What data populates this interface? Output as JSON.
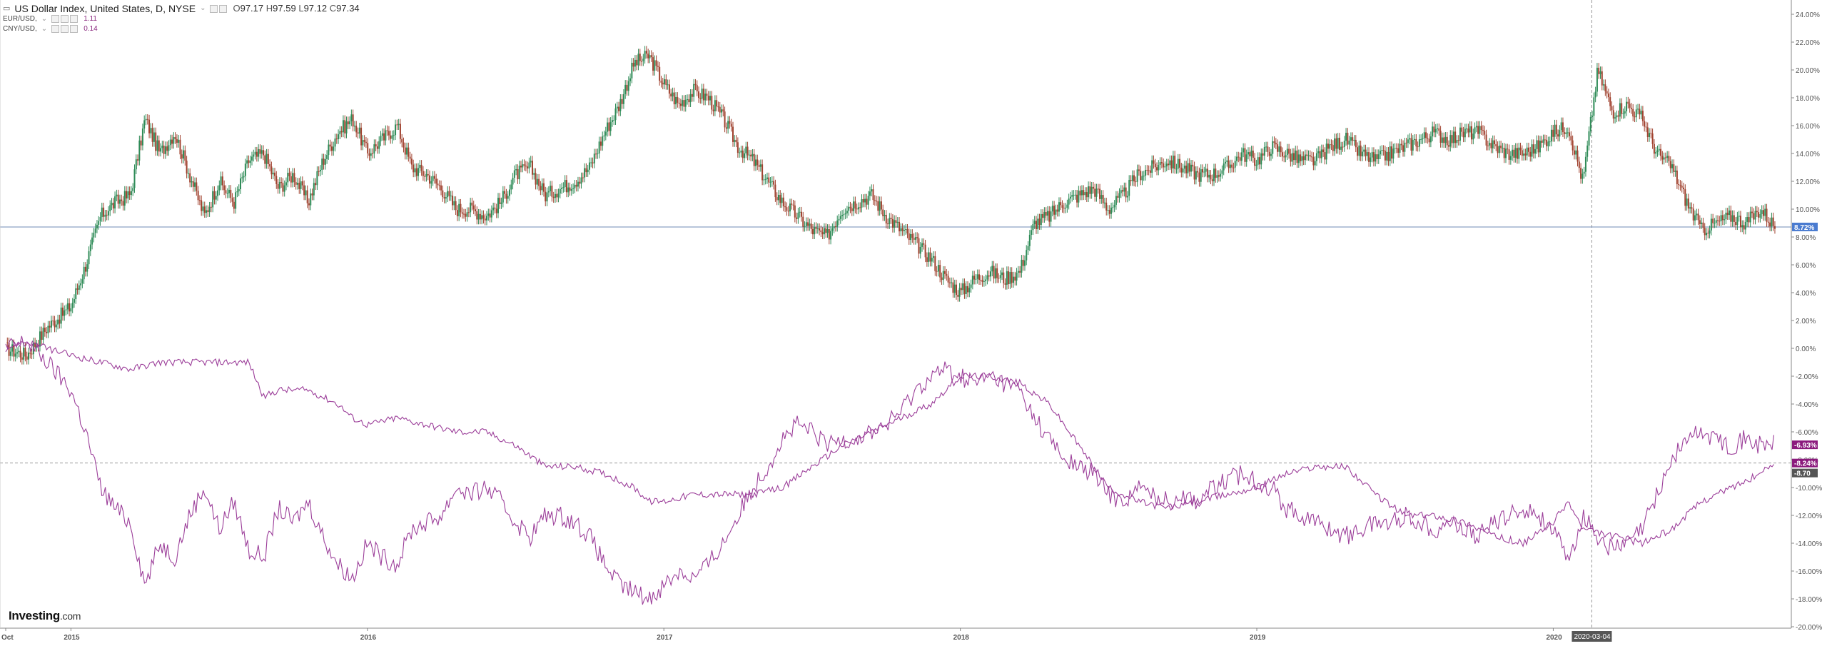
{
  "header": {
    "title": "US Dollar Index, United States, D, NYSE",
    "ohlc": {
      "o_label": "O",
      "o": "97.17",
      "h_label": "H",
      "h": "97.59",
      "l_label": "L",
      "l": "97.12",
      "c_label": "C",
      "c": "97.34"
    },
    "overlays": [
      {
        "label": "EUR/USD,",
        "value": "1.11"
      },
      {
        "label": "CNY/USD,",
        "value": "0.14"
      }
    ]
  },
  "logo": {
    "brand": "Investing",
    "suffix": ".com"
  },
  "colors": {
    "up": "#2e8b57",
    "down": "#a0412e",
    "overlay": "#9c3f9a",
    "axis_text": "#555555",
    "price_tag_blue": "#4a7bd0",
    "price_tag_purple": "#8b1a7d"
  },
  "chart_data": {
    "type": "line",
    "x_labels": [
      "Oct",
      "2015",
      "2016",
      "2017",
      "2018",
      "2019",
      "2020"
    ],
    "crosshair_label": "2020-03-04",
    "y_axis": {
      "ticks": [
        "24.00%",
        "22.00%",
        "20.00%",
        "18.00%",
        "16.00%",
        "14.00%",
        "12.00%",
        "10.00%",
        "8.00%",
        "6.00%",
        "4.00%",
        "2.00%",
        "0.00%",
        "-2.00%",
        "-4.00%",
        "-6.00%",
        "-8.00%",
        "-10.00%",
        "-12.00%",
        "-14.00%",
        "-16.00%",
        "-18.00%",
        "-20.00%"
      ],
      "ylim": [
        -20,
        24
      ]
    },
    "price_tags": [
      {
        "label": "8.72%",
        "value": 8.72
      },
      {
        "label": "-6.93%",
        "value": -6.93
      },
      {
        "label": "-8.24%",
        "value": -8.24
      },
      {
        "label": "-8.70",
        "value": -8.7
      }
    ],
    "series": [
      {
        "name": "US Dollar Index",
        "style": "candles",
        "x": [
          2014.78,
          2014.85,
          2014.92,
          2015.0,
          2015.05,
          2015.1,
          2015.15,
          2015.2,
          2015.25,
          2015.3,
          2015.35,
          2015.4,
          2015.45,
          2015.5,
          2015.55,
          2015.6,
          2015.65,
          2015.7,
          2015.75,
          2015.8,
          2015.85,
          2015.9,
          2015.95,
          2016.0,
          2016.05,
          2016.1,
          2016.15,
          2016.2,
          2016.25,
          2016.3,
          2016.35,
          2016.4,
          2016.45,
          2016.5,
          2016.55,
          2016.6,
          2016.65,
          2016.7,
          2016.75,
          2016.8,
          2016.85,
          2016.9,
          2016.95,
          2017.0,
          2017.05,
          2017.1,
          2017.15,
          2017.2,
          2017.25,
          2017.3,
          2017.35,
          2017.4,
          2017.45,
          2017.5,
          2017.55,
          2017.6,
          2017.65,
          2017.7,
          2017.75,
          2017.8,
          2017.85,
          2017.9,
          2017.95,
          2018.0,
          2018.05,
          2018.1,
          2018.15,
          2018.2,
          2018.25,
          2018.3,
          2018.35,
          2018.4,
          2018.45,
          2018.5,
          2018.55,
          2018.6,
          2018.65,
          2018.7,
          2018.75,
          2018.8,
          2018.85,
          2018.9,
          2018.95,
          2019.0,
          2019.05,
          2019.1,
          2019.15,
          2019.2,
          2019.25,
          2019.3,
          2019.35,
          2019.4,
          2019.45,
          2019.5,
          2019.55,
          2019.6,
          2019.65,
          2019.7,
          2019.75,
          2019.8,
          2019.85,
          2019.9,
          2019.95,
          2020.0,
          2020.05,
          2020.1,
          2020.15,
          2020.2,
          2020.25,
          2020.3,
          2020.35,
          2020.4,
          2020.45,
          2020.5,
          2020.55,
          2020.6,
          2020.65,
          2020.7,
          2020.75
        ],
        "values": [
          0.0,
          -0.5,
          1.5,
          3.0,
          6.0,
          9.5,
          10.5,
          11.0,
          16.5,
          14.0,
          15.5,
          12.5,
          9.5,
          12.0,
          10.5,
          13.5,
          14.0,
          11.5,
          12.5,
          10.5,
          13.5,
          15.5,
          16.5,
          14.0,
          15.0,
          16.0,
          13.0,
          12.5,
          11.5,
          10.0,
          10.0,
          9.5,
          10.5,
          12.5,
          13.0,
          11.0,
          11.5,
          12.0,
          13.0,
          15.5,
          17.5,
          20.5,
          21.0,
          19.0,
          17.5,
          18.5,
          18.0,
          16.5,
          14.5,
          13.5,
          12.0,
          10.5,
          9.5,
          8.5,
          8.0,
          10.0,
          10.5,
          11.0,
          9.5,
          8.5,
          7.5,
          6.5,
          5.0,
          4.0,
          5.0,
          5.5,
          5.0,
          5.5,
          9.0,
          9.5,
          10.5,
          11.0,
          11.5,
          10.0,
          11.0,
          12.5,
          13.0,
          13.5,
          13.0,
          12.5,
          12.5,
          13.0,
          14.0,
          13.5,
          14.5,
          14.0,
          13.5,
          13.5,
          14.5,
          15.0,
          14.0,
          13.5,
          14.0,
          14.5,
          15.0,
          15.5,
          15.0,
          15.5,
          15.5,
          14.5,
          14.0,
          14.0,
          14.5,
          15.5,
          16.0,
          12.0,
          20.0,
          17.0,
          17.5,
          16.5,
          14.0,
          13.0,
          10.5,
          8.5,
          9.0,
          9.5,
          9.0,
          10.0,
          8.7
        ]
      },
      {
        "name": "EUR/USD",
        "style": "line",
        "x": [
          2014.78,
          2014.85,
          2014.92,
          2015.0,
          2015.05,
          2015.1,
          2015.15,
          2015.2,
          2015.25,
          2015.3,
          2015.35,
          2015.4,
          2015.45,
          2015.5,
          2015.55,
          2015.6,
          2015.65,
          2015.7,
          2015.75,
          2015.8,
          2015.85,
          2015.9,
          2015.95,
          2016.0,
          2016.05,
          2016.1,
          2016.15,
          2016.2,
          2016.25,
          2016.3,
          2016.35,
          2016.4,
          2016.45,
          2016.5,
          2016.55,
          2016.6,
          2016.65,
          2016.7,
          2016.75,
          2016.8,
          2016.85,
          2016.9,
          2016.95,
          2017.0,
          2017.05,
          2017.1,
          2017.15,
          2017.2,
          2017.25,
          2017.3,
          2017.35,
          2017.4,
          2017.45,
          2017.5,
          2017.55,
          2017.6,
          2017.65,
          2017.7,
          2017.75,
          2017.8,
          2017.85,
          2017.9,
          2017.95,
          2018.0,
          2018.05,
          2018.1,
          2018.15,
          2018.2,
          2018.25,
          2018.3,
          2018.35,
          2018.4,
          2018.45,
          2018.5,
          2018.55,
          2018.6,
          2018.65,
          2018.7,
          2018.75,
          2018.8,
          2018.85,
          2018.9,
          2018.95,
          2019.0,
          2019.05,
          2019.1,
          2019.15,
          2019.2,
          2019.25,
          2019.3,
          2019.35,
          2019.4,
          2019.45,
          2019.5,
          2019.55,
          2019.6,
          2019.65,
          2019.7,
          2019.75,
          2019.8,
          2019.85,
          2019.9,
          2019.95,
          2020.0,
          2020.05,
          2020.1,
          2020.15,
          2020.2,
          2020.25,
          2020.3,
          2020.35,
          2020.4,
          2020.45,
          2020.5,
          2020.55,
          2020.6,
          2020.65,
          2020.7,
          2020.75
        ],
        "values": [
          0.0,
          0.5,
          -1.0,
          -3.0,
          -6.0,
          -10.0,
          -11.5,
          -12.5,
          -17.0,
          -14.0,
          -15.0,
          -12.0,
          -10.0,
          -13.0,
          -11.0,
          -14.5,
          -15.0,
          -11.5,
          -12.5,
          -11.0,
          -13.5,
          -15.5,
          -16.5,
          -14.0,
          -15.0,
          -15.5,
          -13.0,
          -12.5,
          -12.0,
          -10.0,
          -10.5,
          -10.0,
          -11.0,
          -12.5,
          -13.5,
          -12.0,
          -12.0,
          -12.5,
          -13.5,
          -15.5,
          -17.0,
          -17.5,
          -18.0,
          -17.0,
          -16.0,
          -16.5,
          -15.5,
          -14.0,
          -12.0,
          -10.0,
          -8.5,
          -6.5,
          -5.5,
          -6.0,
          -7.0,
          -6.5,
          -6.5,
          -6.0,
          -5.5,
          -4.5,
          -3.0,
          -2.0,
          -1.5,
          -2.0,
          -2.5,
          -2.0,
          -2.5,
          -3.0,
          -5.0,
          -6.5,
          -8.0,
          -8.5,
          -9.0,
          -10.5,
          -11.0,
          -10.0,
          -10.5,
          -11.0,
          -10.5,
          -11.0,
          -10.0,
          -9.5,
          -9.0,
          -9.5,
          -10.0,
          -11.5,
          -12.0,
          -12.5,
          -13.0,
          -13.5,
          -13.0,
          -12.5,
          -12.5,
          -12.0,
          -12.5,
          -13.0,
          -12.5,
          -13.0,
          -13.5,
          -12.5,
          -12.0,
          -11.5,
          -12.0,
          -13.0,
          -15.5,
          -12.0,
          -13.5,
          -14.5,
          -14.0,
          -13.0,
          -10.5,
          -8.0,
          -6.5,
          -6.0,
          -6.5,
          -7.0,
          -6.5,
          -7.0,
          -6.9
        ]
      },
      {
        "name": "CNY/USD",
        "style": "line",
        "x": [
          2014.78,
          2014.85,
          2014.92,
          2015.0,
          2015.1,
          2015.2,
          2015.3,
          2015.4,
          2015.5,
          2015.55,
          2015.6,
          2015.65,
          2015.7,
          2015.75,
          2015.8,
          2015.85,
          2015.9,
          2015.95,
          2016.0,
          2016.1,
          2016.2,
          2016.3,
          2016.4,
          2016.5,
          2016.6,
          2016.7,
          2016.8,
          2016.9,
          2016.95,
          2017.0,
          2017.1,
          2017.2,
          2017.3,
          2017.4,
          2017.5,
          2017.6,
          2017.7,
          2017.8,
          2017.9,
          2018.0,
          2018.1,
          2018.2,
          2018.3,
          2018.4,
          2018.5,
          2018.6,
          2018.7,
          2018.8,
          2018.9,
          2019.0,
          2019.1,
          2019.2,
          2019.3,
          2019.4,
          2019.5,
          2019.6,
          2019.7,
          2019.8,
          2019.9,
          2020.0,
          2020.05,
          2020.1,
          2020.2,
          2020.3,
          2020.4,
          2020.5,
          2020.6,
          2020.7,
          2020.75
        ],
        "values": [
          0.0,
          0.5,
          0.0,
          -0.5,
          -1.0,
          -1.5,
          -1.0,
          -1.0,
          -1.0,
          -1.0,
          -1.0,
          -3.5,
          -3.0,
          -3.0,
          -3.0,
          -3.5,
          -4.0,
          -5.0,
          -5.5,
          -5.0,
          -5.5,
          -6.0,
          -6.0,
          -7.0,
          -8.5,
          -8.5,
          -9.0,
          -10.0,
          -11.0,
          -11.0,
          -10.5,
          -10.5,
          -10.5,
          -10.0,
          -8.5,
          -7.0,
          -6.0,
          -5.0,
          -4.0,
          -2.0,
          -2.0,
          -2.5,
          -4.0,
          -7.0,
          -10.0,
          -11.0,
          -11.5,
          -11.0,
          -10.5,
          -10.0,
          -9.0,
          -8.5,
          -8.5,
          -10.5,
          -12.0,
          -12.0,
          -12.5,
          -13.5,
          -14.0,
          -12.5,
          -11.0,
          -13.0,
          -13.5,
          -14.0,
          -13.0,
          -11.0,
          -10.0,
          -9.0,
          -8.2
        ]
      }
    ]
  }
}
